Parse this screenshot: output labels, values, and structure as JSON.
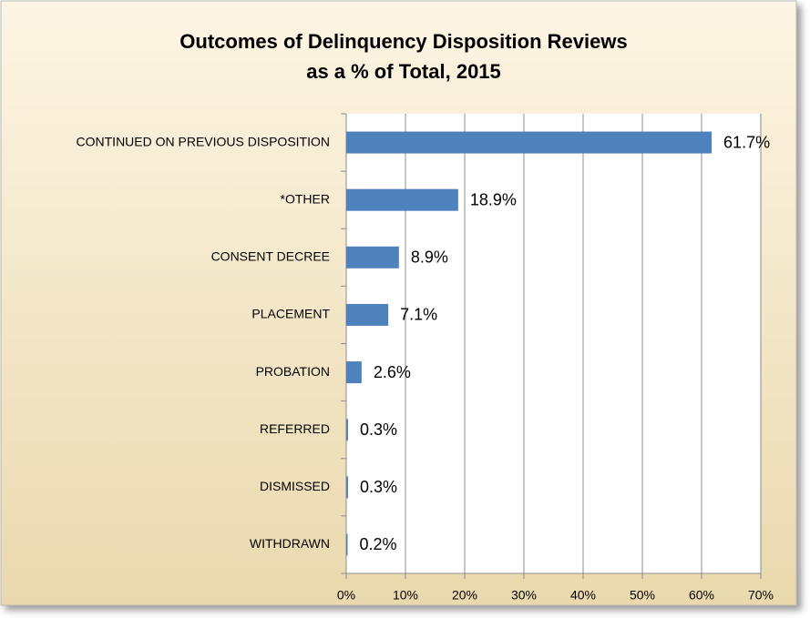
{
  "chart_data": {
    "type": "hbar",
    "title": [
      "Outcomes of Delinquency Disposition Reviews",
      "as a % of Total, 2015"
    ],
    "categories": [
      "CONTINUED ON PREVIOUS DISPOSITION",
      "*OTHER",
      "CONSENT DECREE",
      "PLACEMENT",
      "PROBATION",
      "REFERRED",
      "DISMISSED",
      "WITHDRAWN"
    ],
    "values": [
      61.7,
      18.9,
      8.9,
      7.1,
      2.6,
      0.3,
      0.3,
      0.2
    ],
    "value_labels": [
      "61.7%",
      "18.9%",
      "8.9%",
      "7.1%",
      "2.6%",
      "0.3%",
      "0.3%",
      "0.2%"
    ],
    "color": "#4f81bd",
    "xlim": [
      0,
      70
    ],
    "xticks": [
      {
        "value": 0,
        "label": "0%"
      },
      {
        "value": 10,
        "label": "10%"
      },
      {
        "value": 20,
        "label": "20%"
      },
      {
        "value": 30,
        "label": "30%"
      },
      {
        "value": 40,
        "label": "40%"
      },
      {
        "value": 50,
        "label": "50%"
      },
      {
        "value": 60,
        "label": "60%"
      },
      {
        "value": 70,
        "label": "70%"
      }
    ],
    "grid": true
  }
}
